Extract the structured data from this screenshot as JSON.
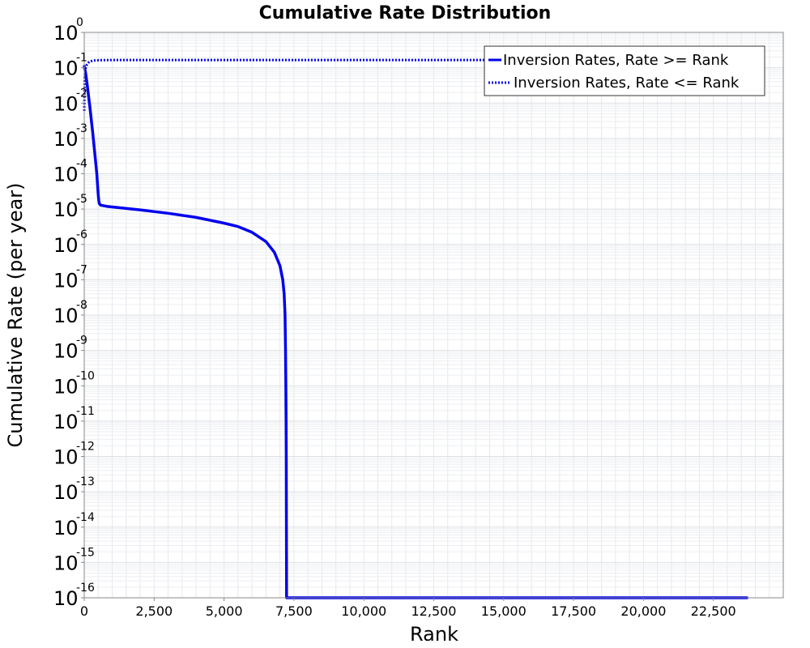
{
  "chart_data": {
    "type": "line",
    "title": "Cumulative Rate Distribution",
    "xlabel": "Rank",
    "ylabel": "Cumulative Rate (per year)",
    "xlim": [
      0,
      25000
    ],
    "ylim": [
      1e-16,
      1
    ],
    "yscale": "log",
    "grid": true,
    "legend_position": "top-right",
    "x_ticks": [
      0,
      2500,
      5000,
      7500,
      10000,
      12500,
      15000,
      17500,
      20000,
      22500
    ],
    "x_tick_labels": [
      "0",
      "2,500",
      "5,000",
      "7,500",
      "10,000",
      "12,500",
      "15,000",
      "17,500",
      "20,000",
      "22,500"
    ],
    "y_ticks": [
      {
        "base": "10",
        "exp": "0"
      },
      {
        "base": "10",
        "exp": "-1"
      },
      {
        "base": "10",
        "exp": "-2"
      },
      {
        "base": "10",
        "exp": "-3"
      },
      {
        "base": "10",
        "exp": "-4"
      },
      {
        "base": "10",
        "exp": "-5"
      },
      {
        "base": "10",
        "exp": "-6"
      },
      {
        "base": "10",
        "exp": "-7"
      },
      {
        "base": "10",
        "exp": "-8"
      },
      {
        "base": "10",
        "exp": "-9"
      },
      {
        "base": "10",
        "exp": "-10"
      },
      {
        "base": "10",
        "exp": "-11"
      },
      {
        "base": "10",
        "exp": "-12"
      },
      {
        "base": "10",
        "exp": "-13"
      },
      {
        "base": "10",
        "exp": "-14"
      },
      {
        "base": "10",
        "exp": "-15"
      },
      {
        "base": "10",
        "exp": "-16"
      }
    ],
    "series": [
      {
        "name": "Inversion Rates, Rate >= Rank",
        "color": "#0000ee",
        "style": "solid",
        "x": [
          0,
          50,
          100,
          200,
          300,
          400,
          450,
          500,
          520,
          540,
          560,
          600,
          800,
          1000,
          2000,
          3000,
          4000,
          5000,
          5500,
          6000,
          6500,
          6800,
          7000,
          7100,
          7150,
          7180,
          7200,
          7210,
          7220,
          7225,
          7230,
          7235,
          23700
        ],
        "y": [
          0.11,
          0.07,
          0.035,
          0.008,
          0.0015,
          0.00025,
          0.0001,
          2.5e-05,
          1.7e-05,
          1.45e-05,
          1.35e-05,
          1.28e-05,
          1.2e-05,
          1.15e-05,
          9.5e-06,
          7.6e-06,
          5.8e-06,
          4e-06,
          3.2e-06,
          2.2e-06,
          1.2e-06,
          6e-07,
          2.5e-07,
          1e-07,
          4e-08,
          1e-08,
          1e-09,
          1e-10,
          1e-11,
          1e-12,
          1e-14,
          1e-16,
          1e-16
        ]
      },
      {
        "name": "Inversion Rates, Rate <= Rank",
        "color": "#0000ee",
        "style": "dotted",
        "x": [
          0,
          10,
          20,
          40,
          60,
          80,
          100,
          150,
          200,
          300,
          400,
          600,
          1000,
          23700
        ],
        "y": [
          0.006,
          0.03,
          0.06,
          0.09,
          0.105,
          0.115,
          0.125,
          0.14,
          0.15,
          0.158,
          0.162,
          0.164,
          0.165,
          0.165
        ]
      }
    ]
  }
}
